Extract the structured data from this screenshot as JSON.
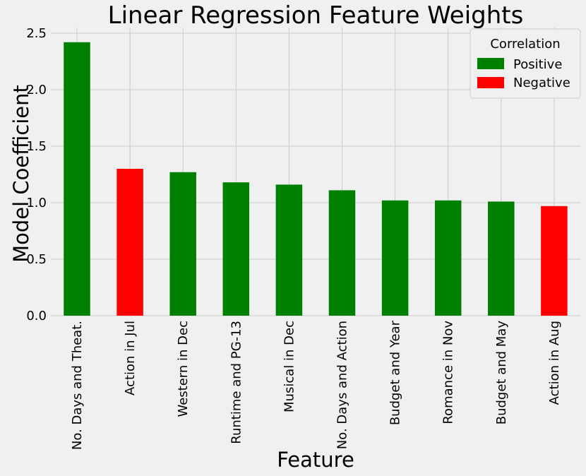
{
  "chart_data": {
    "type": "bar",
    "title": "Linear Regression Feature Weights",
    "xlabel": "Feature",
    "ylabel": "Model Coefficient",
    "categories": [
      "No. Days and Theat.",
      "Action in Jul",
      "Western in Dec",
      "Runtime and PG-13",
      "Musical in Dec",
      "No. Days and Action",
      "Budget and Year",
      "Romance in Nov",
      "Budget and May",
      "Action in Aug"
    ],
    "values": [
      2.42,
      1.3,
      1.27,
      1.18,
      1.16,
      1.11,
      1.02,
      1.02,
      1.01,
      0.97
    ],
    "correlation": [
      "Positive",
      "Negative",
      "Positive",
      "Positive",
      "Positive",
      "Positive",
      "Positive",
      "Positive",
      "Positive",
      "Negative"
    ],
    "ylim": [
      0,
      2.55
    ],
    "yticks": [
      "0.0",
      "0.5",
      "1.0",
      "1.5",
      "2.0",
      "2.5"
    ],
    "grid": true,
    "legend": {
      "title": "Correlation",
      "placement": "top-right",
      "entries": [
        {
          "label": "Positive",
          "color": "#008000"
        },
        {
          "label": "Negative",
          "color": "#ff0000"
        }
      ]
    },
    "colors": {
      "Positive": "#008000",
      "Negative": "#ff0000",
      "background": "#f0f0f0",
      "grid": "#cbcbcb"
    }
  }
}
